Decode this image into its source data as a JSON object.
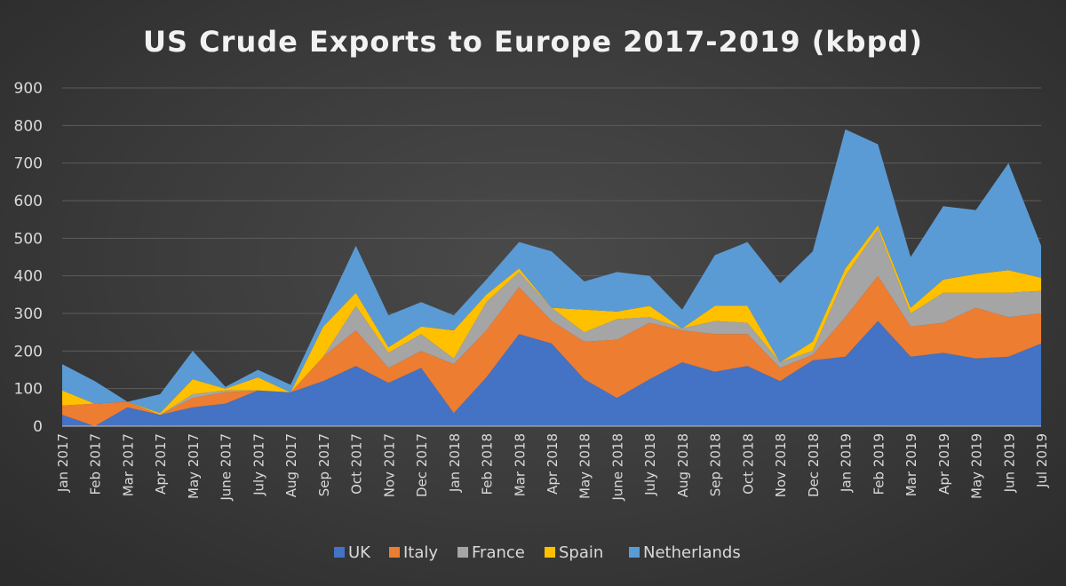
{
  "chart_data": {
    "type": "area",
    "stacked": true,
    "title": "US Crude Exports to Europe 2017-2019 (kbpd)",
    "xlabel": "",
    "ylabel": "",
    "ylim": [
      0,
      900
    ],
    "yticks": [
      "0",
      "100",
      "200",
      "300",
      "400",
      "500",
      "600",
      "700",
      "800",
      "900"
    ],
    "grid": true,
    "legend_position": "bottom",
    "categories": [
      "Jan 2017",
      "Feb 2017",
      "Mar 2017",
      "Apr 2017",
      "May 2017",
      "June 2017",
      "July 2017",
      "Aug 2017",
      "Sep 2017",
      "Oct 2017",
      "Nov 2017",
      "Dec 2017",
      "Jan 2018",
      "Feb 2018",
      "Mar 2018",
      "Apr 2018",
      "May 2018",
      "June 2018",
      "July 2018",
      "Aug 2018",
      "Sep 2018",
      "Oct 2018",
      "Nov 2018",
      "Dec 2018",
      "Jan 2019",
      "Feb 2019",
      "Mar 2019",
      "Apr 2019",
      "May 2019",
      "Jun 2019",
      "Jul 2019"
    ],
    "series": [
      {
        "name": "UK",
        "color": "#4472c4",
        "values": [
          30,
          0,
          50,
          30,
          50,
          60,
          95,
          90,
          120,
          160,
          115,
          155,
          35,
          130,
          245,
          220,
          125,
          75,
          125,
          170,
          145,
          160,
          120,
          175,
          185,
          280,
          185,
          195,
          180,
          185,
          220
        ]
      },
      {
        "name": "Italy",
        "color": "#ed7d31",
        "values": [
          25,
          60,
          15,
          0,
          25,
          30,
          0,
          0,
          65,
          95,
          40,
          45,
          130,
          125,
          125,
          60,
          100,
          155,
          150,
          85,
          100,
          85,
          35,
          15,
          105,
          120,
          80,
          80,
          135,
          105,
          80
        ]
      },
      {
        "name": "France",
        "color": "#a5a5a5",
        "values": [
          0,
          0,
          0,
          0,
          10,
          5,
          0,
          0,
          0,
          65,
          40,
          45,
          15,
          75,
          40,
          35,
          25,
          55,
          15,
          5,
          35,
          30,
          15,
          10,
          110,
          125,
          35,
          80,
          40,
          65,
          60
        ]
      },
      {
        "name": "Spain",
        "color": "#ffc000",
        "values": [
          40,
          0,
          0,
          5,
          40,
          5,
          35,
          0,
          80,
          35,
          15,
          20,
          75,
          20,
          10,
          0,
          60,
          20,
          30,
          0,
          40,
          45,
          0,
          25,
          20,
          10,
          15,
          35,
          50,
          60,
          35
        ]
      },
      {
        "name": "Netherlands",
        "color": "#5b9bd5",
        "values": [
          70,
          60,
          0,
          50,
          75,
          5,
          20,
          20,
          30,
          125,
          85,
          65,
          40,
          40,
          70,
          150,
          75,
          105,
          80,
          50,
          135,
          170,
          210,
          240,
          370,
          215,
          135,
          195,
          170,
          285,
          85
        ]
      }
    ]
  }
}
